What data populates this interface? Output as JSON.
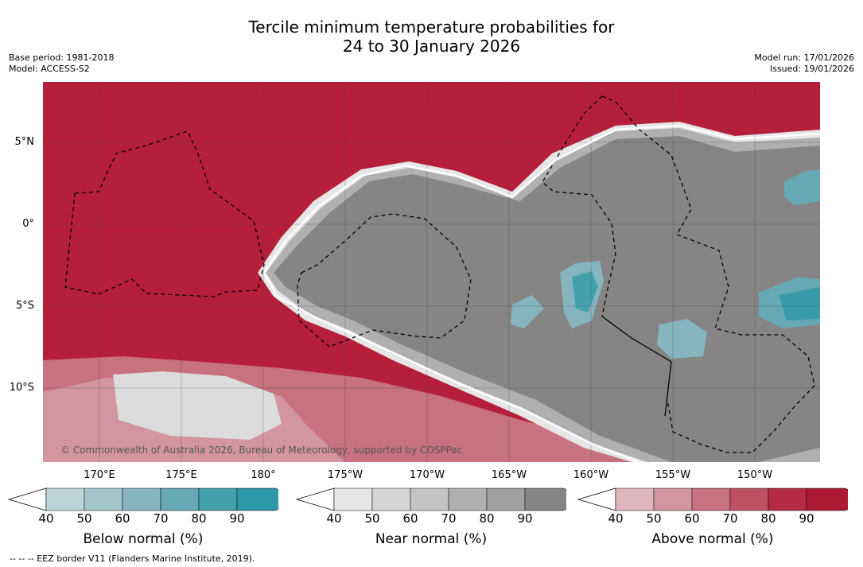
{
  "title": {
    "line1": "Tercile minimum temperature probabilities for",
    "line2": "24 to 30 January 2026"
  },
  "meta_left": {
    "base_period": "Base period: 1981-2018",
    "model": "Model: ACCESS-S2"
  },
  "meta_right": {
    "model_run": "Model run: 17/01/2026",
    "issued": "Issued: 19/01/2026"
  },
  "map": {
    "lat_labels": [
      "5°N",
      "0°",
      "5°S",
      "10°S"
    ],
    "lon_labels": [
      "170°E",
      "175°E",
      "180°",
      "175°W",
      "170°W",
      "165°W",
      "160°W",
      "155°W",
      "150°W"
    ],
    "copyright": "© Commonwealth of Australia 2026, Bureau of Meteorology, supported by COSPPac",
    "colors": {
      "above_dominant": "#b51f3b",
      "near_dominant": "#858585",
      "below_dominant": "#3a9aaa"
    }
  },
  "colorbars": [
    {
      "id": "below",
      "title": "Below normal (%)",
      "ticks": [
        "40",
        "50",
        "60",
        "70",
        "80",
        "90"
      ],
      "colors": [
        "#bdd4db",
        "#a4c5cc",
        "#86b5bf",
        "#66a8b4",
        "#45a0ae",
        "#2d98a8"
      ]
    },
    {
      "id": "near",
      "title": "Near normal (%)",
      "ticks": [
        "40",
        "50",
        "60",
        "70",
        "80",
        "90"
      ],
      "colors": [
        "#e6e6e6",
        "#d6d6d6",
        "#c4c4c4",
        "#b0b0b0",
        "#a0a0a0",
        "#858585"
      ]
    },
    {
      "id": "above",
      "title": "Above normal (%)",
      "ticks": [
        "40",
        "50",
        "60",
        "70",
        "80",
        "90"
      ],
      "colors": [
        "#dfb6bd",
        "#d3959f",
        "#c8717f",
        "#bf5262",
        "#b52b44",
        "#ac1a33"
      ]
    }
  ],
  "footer": "--  --  -- EEZ border V11 (Flanders Marine Institute, 2019)."
}
